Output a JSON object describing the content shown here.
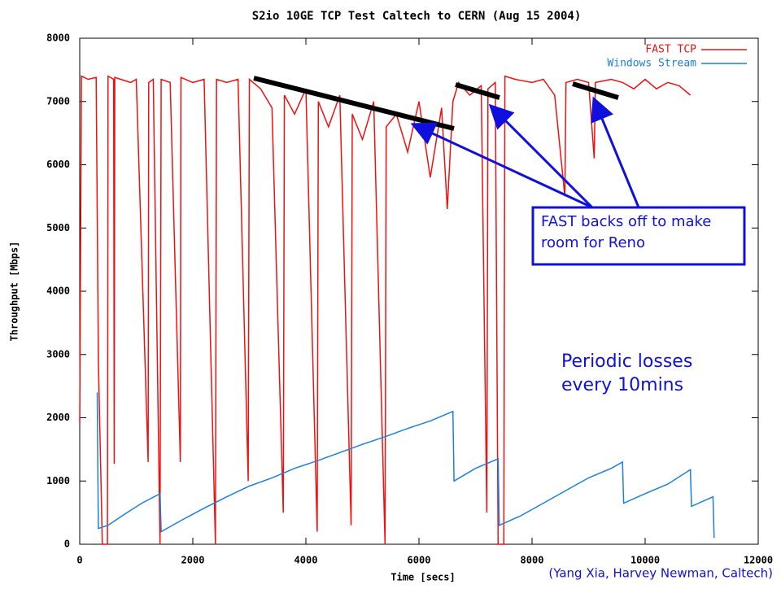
{
  "chart_data": {
    "type": "line",
    "title": "S2io 10GE TCP Test Caltech to CERN  (Aug 15 2004)",
    "x_label": "Time [secs]",
    "y_label": "Throughput [Mbps]",
    "xlim": [
      0,
      12000
    ],
    "ylim": [
      0,
      8000
    ],
    "xticks": [
      0,
      2000,
      4000,
      6000,
      8000,
      10000,
      12000
    ],
    "yticks": [
      0,
      1000,
      2000,
      3000,
      4000,
      5000,
      6000,
      7000,
      8000
    ],
    "legend": "upper right",
    "series": [
      {
        "name": "FAST TCP",
        "color": "#ee1111",
        "x": [
          0,
          30,
          150,
          290,
          331,
          400,
          490,
          500,
          600,
          610,
          620,
          900,
          1000,
          1210,
          1220,
          1300,
          1420,
          1440,
          1600,
          1780,
          1790,
          2000,
          2200,
          2400,
          2420,
          2600,
          2800,
          2980,
          3000,
          3200,
          3400,
          3600,
          3620,
          3800,
          4000,
          4200,
          4220,
          4400,
          4600,
          4800,
          4820,
          5000,
          5200,
          5400,
          5420,
          5600,
          5800,
          6000,
          6200,
          6400,
          6500,
          6600,
          6700,
          6900,
          7100,
          7200,
          7220,
          7350,
          7400,
          7500,
          7520,
          7700,
          8000,
          8200,
          8400,
          8580,
          8600,
          8800,
          9000,
          9100,
          9120,
          9400,
          9600,
          9800,
          10000,
          10200,
          10400,
          10600,
          10800
        ],
        "values": [
          1900,
          7400,
          7350,
          7380,
          2850,
          0,
          0,
          7400,
          7350,
          1270,
          7380,
          7300,
          7350,
          1300,
          7300,
          7350,
          0,
          7350,
          7300,
          1300,
          7380,
          7300,
          7350,
          0,
          7350,
          7300,
          7350,
          1000,
          7350,
          7200,
          6900,
          500,
          7100,
          6800,
          7200,
          200,
          7000,
          6600,
          7100,
          300,
          6800,
          6400,
          7000,
          0,
          6600,
          6800,
          6200,
          7000,
          5800,
          6900,
          5300,
          7000,
          7300,
          7100,
          7250,
          500,
          7200,
          7300,
          0,
          0,
          7400,
          7350,
          7300,
          7350,
          7100,
          5500,
          7300,
          7350,
          7300,
          6100,
          7300,
          7350,
          7300,
          7200,
          7350,
          7200,
          7300,
          7250,
          7100
        ]
      },
      {
        "name": "Windows Stream",
        "color": "#1a80e0",
        "x": [
          310,
          330,
          500,
          800,
          1100,
          1420,
          1440,
          1800,
          2200,
          2600,
          3000,
          3400,
          3800,
          4200,
          4600,
          5000,
          5400,
          5800,
          6200,
          6600,
          6620,
          7000,
          7400,
          7420,
          7800,
          8200,
          8600,
          9000,
          9400,
          9600,
          9620,
          10000,
          10400,
          10800,
          10820,
          11200,
          11220
        ],
        "values": [
          2400,
          250,
          300,
          480,
          650,
          800,
          200,
          380,
          570,
          750,
          920,
          1050,
          1200,
          1320,
          1450,
          1580,
          1700,
          1830,
          1950,
          2100,
          1000,
          1200,
          1350,
          300,
          450,
          650,
          850,
          1050,
          1200,
          1300,
          650,
          800,
          950,
          1180,
          600,
          750,
          100
        ]
      }
    ],
    "annotations": [
      "FAST backs off to make room for Reno",
      "Periodic losses every 10mins",
      "(Yang Xia, Harvey Newman, Caltech)"
    ]
  }
}
